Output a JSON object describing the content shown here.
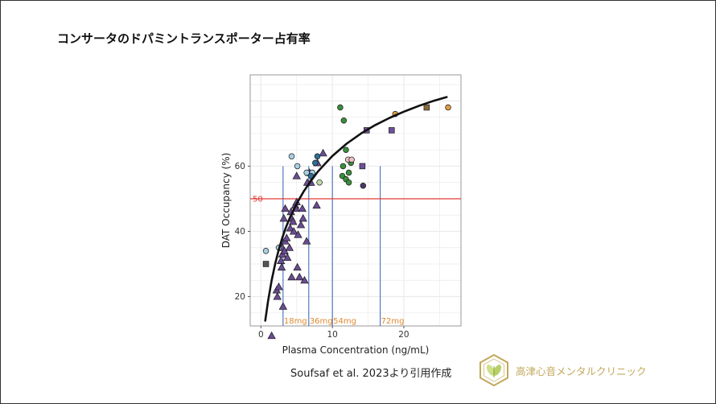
{
  "page": {
    "title": "コンサータのドパミントランスポーター占有率",
    "citation": "Soufsaf et al. 2023より引用作成",
    "clinic_name": "高津心音メンタルクリニック"
  },
  "colors": {
    "curve": "#111111",
    "threshold_line": "#e53935",
    "threshold_label": "#e53935",
    "dose_lines": "#2e5fb0",
    "dose_labels": "#e08a30",
    "triangle": "#6a4c93",
    "grid": "#ebebeb",
    "logo": "#c2a85c"
  },
  "chart_data": {
    "type": "scatter",
    "xlabel": "Plasma Concentration (ng/mL)",
    "ylabel": "DAT Occupancy (%)",
    "xlim": [
      -1.5,
      28
    ],
    "ylim": [
      11,
      88
    ],
    "x_ticks": [
      0,
      10,
      20
    ],
    "y_ticks": [
      20,
      40,
      60
    ],
    "grid": true,
    "reference_line": {
      "y": 50,
      "label": "50"
    },
    "dose_markers": [
      {
        "x": 3.1,
        "label": "18mg"
      },
      {
        "x": 6.7,
        "label": "36mg"
      },
      {
        "x": 10.0,
        "label": "54mg"
      },
      {
        "x": 16.7,
        "label": "72mg"
      }
    ],
    "fit_curve": {
      "x": [
        0.6,
        1.0,
        1.5,
        2.0,
        2.5,
        3.0,
        3.5,
        4.0,
        5.0,
        6.0,
        7.0,
        8.0,
        9.0,
        10.0,
        12.0,
        14.0,
        16.0,
        18.0,
        20.0,
        22.0,
        24.0,
        26.0
      ],
      "y": [
        12.6,
        18.6,
        24.9,
        30.1,
        34.4,
        38.1,
        41.2,
        43.9,
        48.5,
        52.3,
        55.5,
        58.4,
        60.8,
        63.1,
        66.9,
        70.0,
        72.6,
        74.8,
        76.7,
        78.4,
        79.9,
        81.2
      ]
    },
    "series": [
      {
        "marker": "triangle",
        "color": "#6a4c93",
        "points": [
          [
            1.5,
            8
          ],
          [
            2.2,
            22
          ],
          [
            2.3,
            20
          ],
          [
            2.5,
            23
          ],
          [
            2.8,
            31
          ],
          [
            2.9,
            29
          ],
          [
            3.0,
            35
          ],
          [
            3.0,
            33
          ],
          [
            3.1,
            17
          ],
          [
            3.3,
            34
          ],
          [
            3.4,
            37
          ],
          [
            3.6,
            38
          ],
          [
            3.2,
            44
          ],
          [
            3.4,
            47
          ],
          [
            3.7,
            32
          ],
          [
            4.0,
            35
          ],
          [
            4.1,
            41
          ],
          [
            4.3,
            44
          ],
          [
            4.2,
            46
          ],
          [
            4.5,
            43
          ],
          [
            4.6,
            40
          ],
          [
            4.3,
            26
          ],
          [
            4.8,
            48
          ],
          [
            4.9,
            47
          ],
          [
            5.0,
            49
          ],
          [
            5.1,
            29
          ],
          [
            5.2,
            39
          ],
          [
            5.4,
            26
          ],
          [
            5.6,
            42
          ],
          [
            5.8,
            47
          ],
          [
            5.9,
            44
          ],
          [
            6.1,
            25
          ],
          [
            6.4,
            37
          ],
          [
            5.0,
            57
          ],
          [
            6.5,
            55
          ],
          [
            7.0,
            55
          ],
          [
            6.8,
            58
          ],
          [
            7.8,
            48
          ],
          [
            7.9,
            61
          ],
          [
            8.7,
            64
          ]
        ]
      },
      {
        "marker": "circle",
        "color": "#a9cfe3",
        "points": [
          [
            0.7,
            34
          ],
          [
            2.5,
            35
          ],
          [
            4.3,
            63
          ],
          [
            5.1,
            60
          ],
          [
            6.4,
            58
          ],
          [
            7.2,
            58
          ]
        ]
      },
      {
        "marker": "circle",
        "color": "#2f6f96",
        "points": [
          [
            7.0,
            57
          ],
          [
            7.6,
            61
          ],
          [
            7.9,
            63
          ]
        ]
      },
      {
        "marker": "circle",
        "color": "#3b8e3b",
        "points": [
          [
            11.1,
            78
          ],
          [
            11.6,
            74
          ],
          [
            11.9,
            65
          ],
          [
            11.5,
            60
          ],
          [
            11.4,
            57
          ],
          [
            11.9,
            56
          ],
          [
            12.3,
            55
          ],
          [
            12.3,
            58
          ],
          [
            12.6,
            61
          ]
        ]
      },
      {
        "marker": "circle",
        "color": "#c2d9a8",
        "points": [
          [
            8.2,
            55
          ]
        ]
      },
      {
        "marker": "circle",
        "color": "#ecc0c4",
        "points": [
          [
            12.2,
            62
          ],
          [
            12.7,
            62
          ]
        ]
      },
      {
        "marker": "circle",
        "color": "#4e3866",
        "points": [
          [
            14.3,
            54
          ]
        ]
      },
      {
        "marker": "circle",
        "color": "#e39b45",
        "points": [
          [
            18.8,
            76
          ],
          [
            26.2,
            78
          ]
        ]
      },
      {
        "marker": "square",
        "color": "#6f4f9c",
        "points": [
          [
            14.2,
            60
          ],
          [
            14.8,
            71
          ],
          [
            18.3,
            71
          ]
        ]
      },
      {
        "marker": "square",
        "color": "#8a6a3a",
        "points": [
          [
            23.2,
            78
          ]
        ]
      },
      {
        "marker": "square",
        "color": "#555555",
        "points": [
          [
            0.7,
            30
          ]
        ]
      }
    ]
  }
}
